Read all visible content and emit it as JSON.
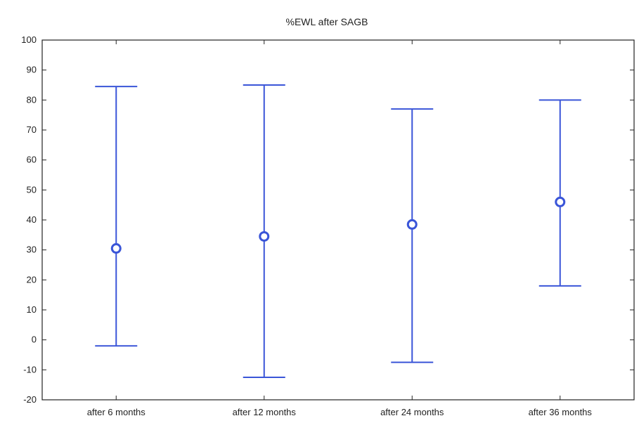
{
  "chart_data": {
    "type": "errorbar",
    "title": "%EWL after SAGB",
    "xlabel": "",
    "ylabel": "",
    "ylim": [
      -20,
      100
    ],
    "yticks": [
      -20,
      -10,
      0,
      10,
      20,
      30,
      40,
      50,
      60,
      70,
      80,
      90,
      100
    ],
    "categories": [
      "after 6 months",
      "after 12 months",
      "after 24 months",
      "after 36 months"
    ],
    "mean": [
      30.5,
      34.5,
      38.5,
      46
    ],
    "upper": [
      84.5,
      85,
      77,
      80
    ],
    "lower": [
      -2,
      -12.5,
      -7.5,
      18
    ],
    "grid": false,
    "colors": {
      "series": "#3a55d8",
      "axis": "#222222"
    }
  }
}
